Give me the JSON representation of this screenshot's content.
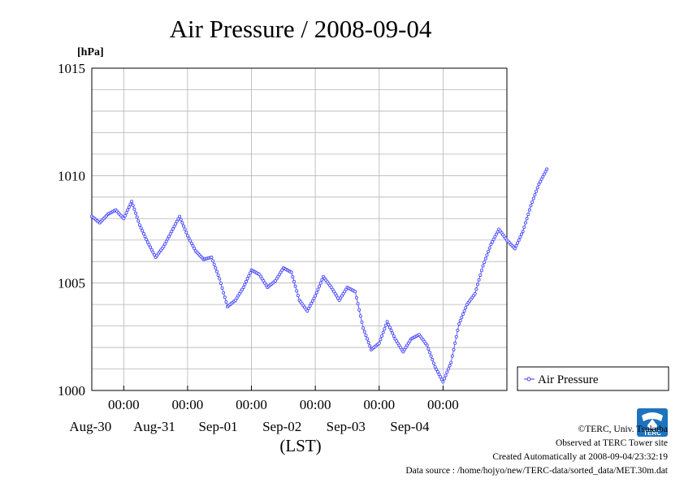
{
  "chart_data": {
    "type": "line",
    "title": "Air Pressure / 2008-09-04",
    "ylabel": "[hPa]",
    "xlabel": "(LST)",
    "ylim": [
      1000,
      1015
    ],
    "yticks": [
      "1015",
      "1010",
      "1005",
      "1000"
    ],
    "xlim_days": [
      "Aug-29 12:00",
      "Sep-05 00:00"
    ],
    "xticks": [
      {
        "time": "00:00",
        "date": "Aug-30"
      },
      {
        "time": "00:00",
        "date": "Aug-31"
      },
      {
        "time": "00:00",
        "date": "Sep-01"
      },
      {
        "time": "00:00",
        "date": "Sep-02"
      },
      {
        "time": "00:00",
        "date": "Sep-03"
      },
      {
        "time": "00:00",
        "date": "Sep-04"
      }
    ],
    "grid": true,
    "legend_placement": "right",
    "series": [
      {
        "name": "Air Pressure",
        "color": "#3c3cff",
        "points": [
          [
            "Aug-29 12:00",
            1008.1
          ],
          [
            "Aug-29 15:00",
            1007.8
          ],
          [
            "Aug-29 18:00",
            1008.2
          ],
          [
            "Aug-29 21:00",
            1008.4
          ],
          [
            "Aug-30 00:00",
            1008.0
          ],
          [
            "Aug-30 03:00",
            1008.8
          ],
          [
            "Aug-30 06:00",
            1007.7
          ],
          [
            "Aug-30 09:00",
            1006.9
          ],
          [
            "Aug-30 12:00",
            1006.2
          ],
          [
            "Aug-30 15:00",
            1006.7
          ],
          [
            "Aug-30 18:00",
            1007.4
          ],
          [
            "Aug-30 21:00",
            1008.1
          ],
          [
            "Aug-31 00:00",
            1007.2
          ],
          [
            "Aug-31 03:00",
            1006.5
          ],
          [
            "Aug-31 06:00",
            1006.1
          ],
          [
            "Aug-31 09:00",
            1006.2
          ],
          [
            "Aug-31 12:00",
            1005.2
          ],
          [
            "Aug-31 15:00",
            1003.9
          ],
          [
            "Aug-31 18:00",
            1004.2
          ],
          [
            "Aug-31 21:00",
            1004.8
          ],
          [
            "Sep-01 00:00",
            1005.6
          ],
          [
            "Sep-01 03:00",
            1005.4
          ],
          [
            "Sep-01 06:00",
            1004.8
          ],
          [
            "Sep-01 09:00",
            1005.1
          ],
          [
            "Sep-01 12:00",
            1005.7
          ],
          [
            "Sep-01 15:00",
            1005.5
          ],
          [
            "Sep-01 18:00",
            1004.2
          ],
          [
            "Sep-01 21:00",
            1003.7
          ],
          [
            "Sep-02 00:00",
            1004.4
          ],
          [
            "Sep-02 03:00",
            1005.3
          ],
          [
            "Sep-02 06:00",
            1004.8
          ],
          [
            "Sep-02 09:00",
            1004.2
          ],
          [
            "Sep-02 12:00",
            1004.8
          ],
          [
            "Sep-02 15:00",
            1004.6
          ],
          [
            "Sep-02 18:00",
            1002.9
          ],
          [
            "Sep-02 21:00",
            1001.9
          ],
          [
            "Sep-03 00:00",
            1002.2
          ],
          [
            "Sep-03 03:00",
            1003.2
          ],
          [
            "Sep-03 06:00",
            1002.4
          ],
          [
            "Sep-03 09:00",
            1001.8
          ],
          [
            "Sep-03 12:00",
            1002.4
          ],
          [
            "Sep-03 15:00",
            1002.6
          ],
          [
            "Sep-03 18:00",
            1002.1
          ],
          [
            "Sep-03 21:00",
            1001.1
          ],
          [
            "Sep-04 00:00",
            1000.4
          ],
          [
            "Sep-04 03:00",
            1001.3
          ],
          [
            "Sep-04 06:00",
            1003.1
          ],
          [
            "Sep-04 09:00",
            1004.0
          ],
          [
            "Sep-04 12:00",
            1004.5
          ],
          [
            "Sep-04 15:00",
            1005.8
          ],
          [
            "Sep-04 18:00",
            1006.8
          ],
          [
            "Sep-04 21:00",
            1007.5
          ],
          [
            "Sep-05 00:00",
            1007.0
          ],
          [
            "Sep-05 03:00",
            1006.6
          ],
          [
            "Sep-05 06:00",
            1007.4
          ],
          [
            "Sep-05 09:00",
            1008.6
          ],
          [
            "Sep-05 12:00",
            1009.6
          ],
          [
            "Sep-05 15:00",
            1010.3
          ]
        ]
      }
    ]
  },
  "footer": {
    "copyright": "©TERC, Univ. Tsukuba",
    "observed": "Observed at TERC Tower site",
    "created": "Created Automatically at 2008-09-04/23:32:19",
    "source": "Data source : /home/hojyo/new/TERC-data/sorted_data/MET.30m.dat"
  },
  "logo": {
    "text": "TERC",
    "color": "#1e73be"
  }
}
